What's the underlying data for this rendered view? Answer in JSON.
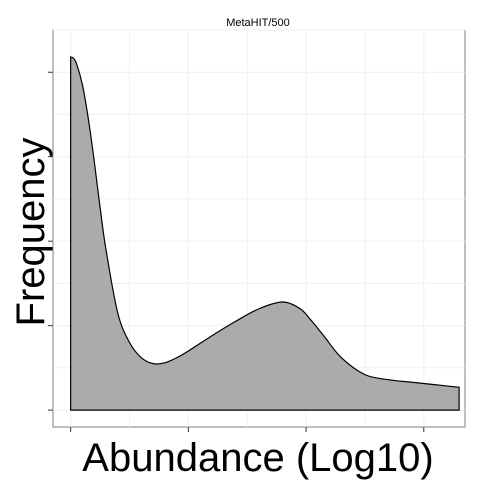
{
  "chart_data": {
    "type": "area",
    "title": "MetaHIT/500",
    "xlabel": "Abundance (Log10)",
    "ylabel": "Frequency",
    "x_tick_labels_visible": false,
    "y_tick_labels_visible": false,
    "x_ticks": [
      0,
      1,
      2,
      3
    ],
    "y_ticks": [
      0,
      1,
      2,
      3,
      4
    ],
    "xlim": [
      -0.15,
      3.35
    ],
    "ylim": [
      -0.2,
      4.5
    ],
    "grid": true,
    "fill_color": "#ababab",
    "line_color": "#000000",
    "x": [
      0.0,
      0.02,
      0.05,
      0.1,
      0.15,
      0.2,
      0.25,
      0.3,
      0.4,
      0.5,
      0.6,
      0.7,
      0.8,
      0.9,
      1.0,
      1.2,
      1.4,
      1.6,
      1.8,
      1.95,
      2.05,
      2.15,
      2.3,
      2.5,
      2.7,
      2.9,
      3.1,
      3.3
    ],
    "y": [
      4.18,
      4.17,
      4.1,
      3.85,
      3.45,
      2.95,
      2.4,
      1.9,
      1.15,
      0.8,
      0.62,
      0.55,
      0.56,
      0.62,
      0.7,
      0.88,
      1.05,
      1.2,
      1.28,
      1.2,
      1.05,
      0.88,
      0.62,
      0.42,
      0.36,
      0.33,
      0.3,
      0.27
    ]
  }
}
